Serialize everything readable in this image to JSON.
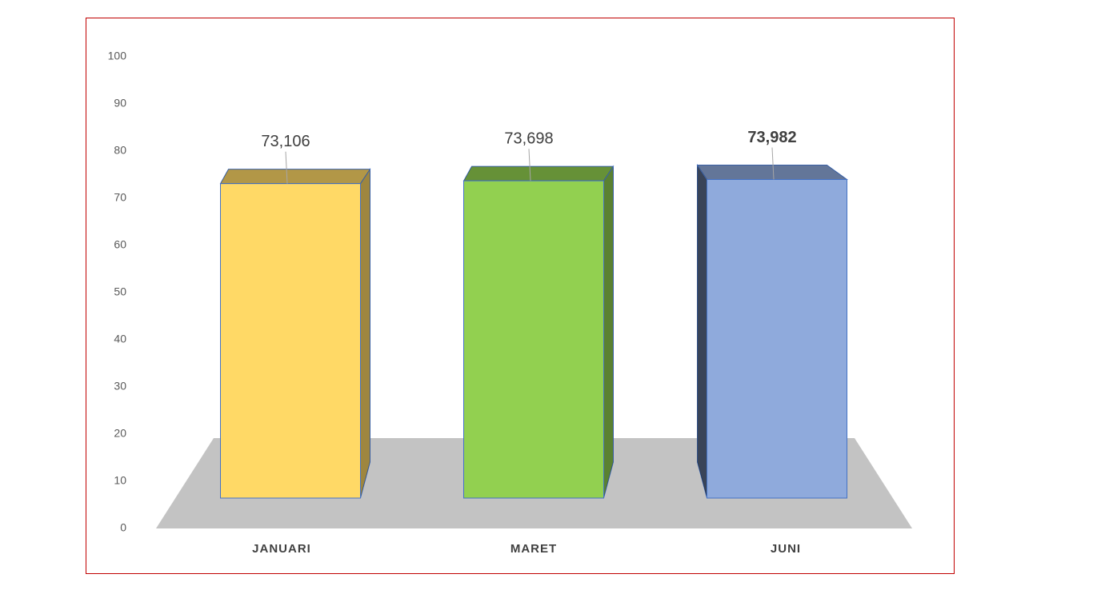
{
  "chart_data": {
    "type": "bar3d",
    "categories": [
      "JANUARI",
      "MARET",
      "JUNI"
    ],
    "values": [
      73.106,
      73.698,
      73.982
    ],
    "value_labels": [
      "73,106",
      "73,698",
      "73,982"
    ],
    "colors": [
      "#ffd966",
      "#92d050",
      "#8faadc"
    ],
    "ylim": [
      0,
      100
    ],
    "yticks": [
      0,
      10,
      20,
      30,
      40,
      50,
      60,
      70,
      80,
      90,
      100
    ]
  }
}
